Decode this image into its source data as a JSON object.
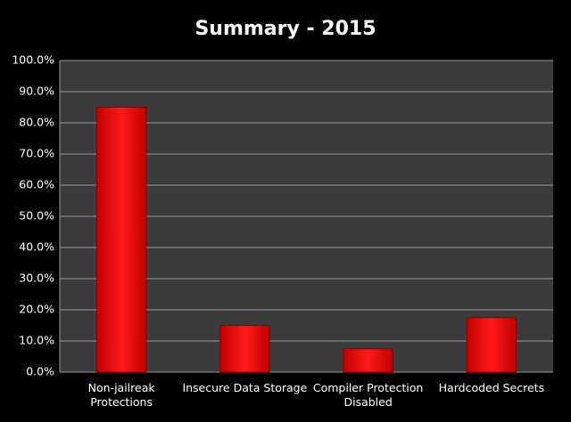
{
  "chart_data": {
    "type": "bar",
    "title": "Summary - 2015",
    "categories": [
      "Non-jailreak Protections",
      "Insecure Data Storage",
      "Compiler Protection Disabled",
      "Hardcoded Secrets"
    ],
    "values": [
      85,
      15,
      7.5,
      17.5
    ],
    "color": "#ff0000",
    "ylim": [
      0,
      100
    ],
    "yticks": [
      {
        "value": 0,
        "label": "0.0%"
      },
      {
        "value": 10,
        "label": "10.0%"
      },
      {
        "value": 20,
        "label": "20.0%"
      },
      {
        "value": 30,
        "label": "30.0%"
      },
      {
        "value": 40,
        "label": "40.0%"
      },
      {
        "value": 50,
        "label": "50.0%"
      },
      {
        "value": 60,
        "label": "60.0%"
      },
      {
        "value": 70,
        "label": "70.0%"
      },
      {
        "value": 80,
        "label": "80.0%"
      },
      {
        "value": 90,
        "label": "90.0%"
      },
      {
        "value": 100,
        "label": "100.0%"
      }
    ],
    "grid": true
  }
}
